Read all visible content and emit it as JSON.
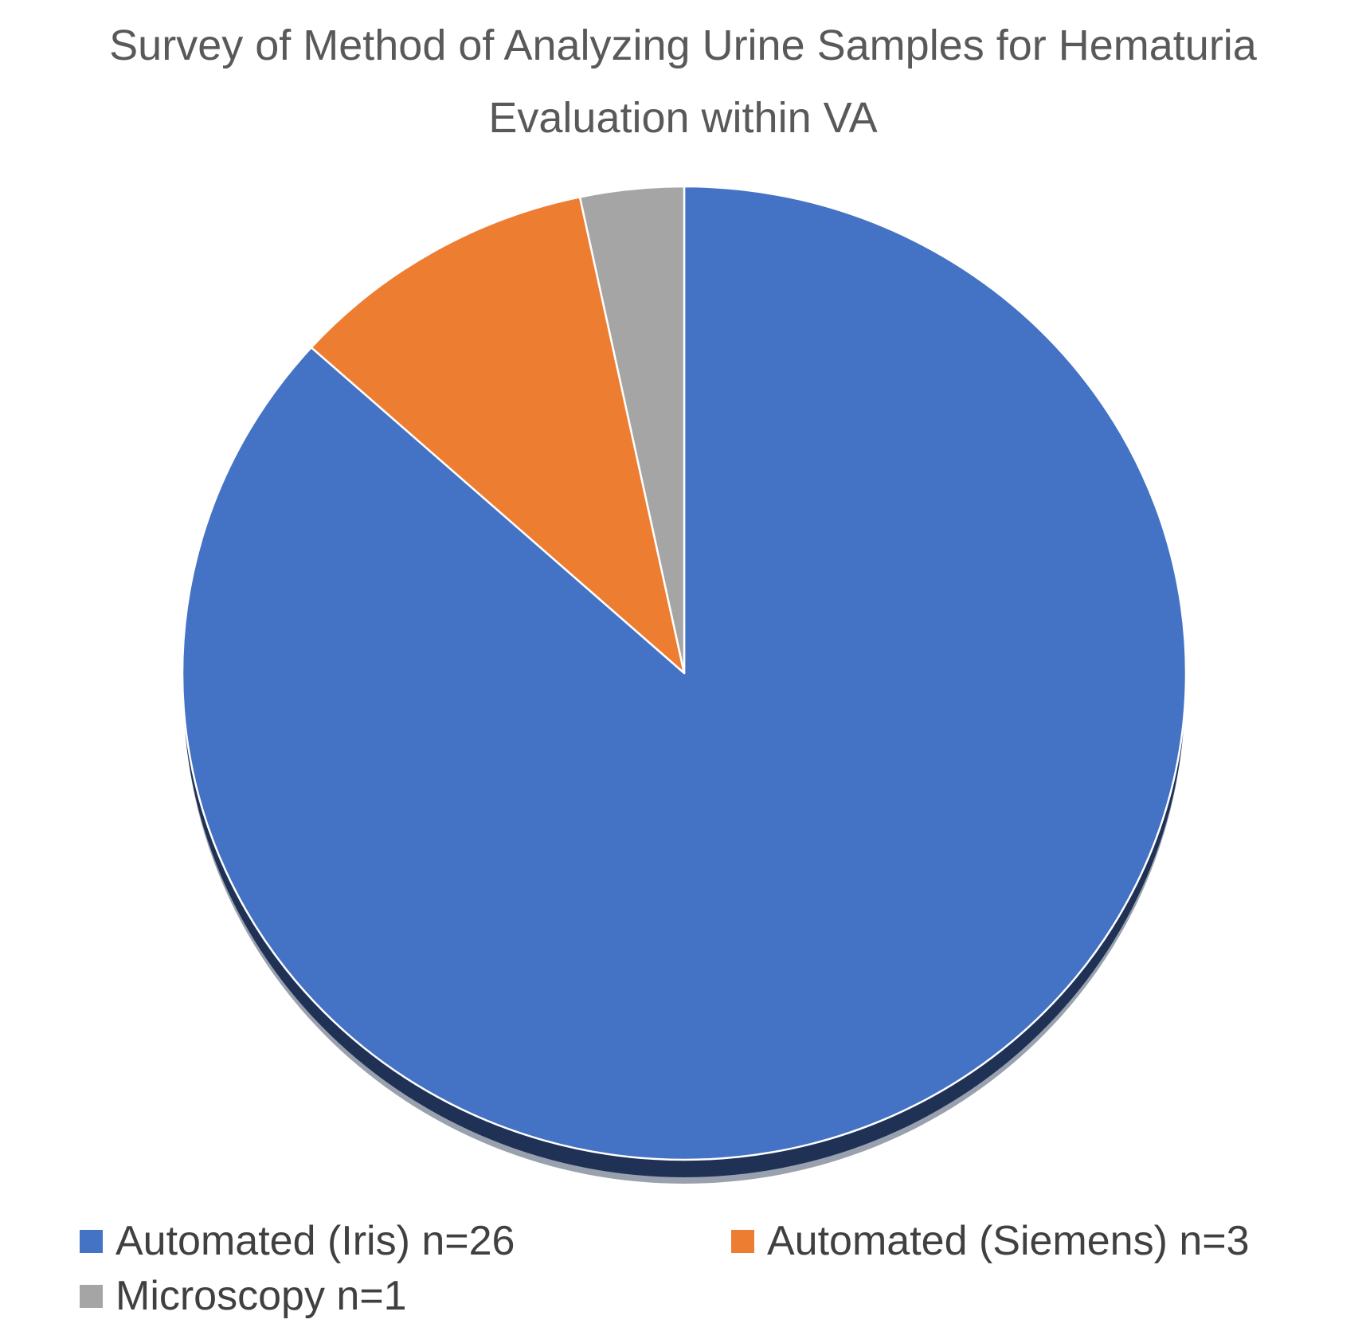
{
  "title": "Survey of Method of Analyzing Urine Samples for Hematuria Evaluation within VA",
  "chart_data": {
    "type": "pie",
    "title": "Survey of Method of Analyzing Urine Samples for Hematuria Evaluation within VA",
    "categories": [
      "Automated (Iris)",
      "Automated (Siemens)",
      "Microscopy"
    ],
    "values": [
      26,
      3,
      1
    ],
    "total": 30,
    "percentages": [
      86.7,
      10.0,
      3.3
    ],
    "start_angle_deg": 0,
    "direction": "clockwise",
    "slice_colors": [
      "#4472C4",
      "#ED7D31",
      "#A5A5A5"
    ],
    "slice_border_color": "#FFFFFF",
    "shadow_color": "#1F3155",
    "legend_position": "bottom",
    "legend": {
      "entries": [
        {
          "label": "Automated (Iris) n=26",
          "color": "#4472C4"
        },
        {
          "label": "Automated (Siemens) n=3",
          "color": "#ED7D31"
        },
        {
          "label": "Microscopy n=1",
          "color": "#A5A5A5"
        }
      ]
    }
  },
  "style_colors": {
    "title_text": "#595959",
    "legend_text": "#404040",
    "background": "#FFFFFF"
  }
}
